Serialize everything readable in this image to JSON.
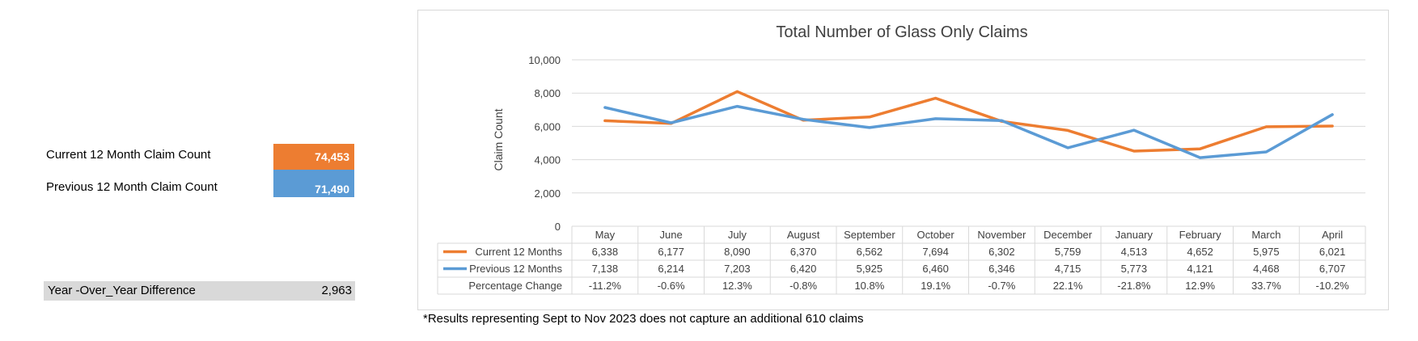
{
  "kpis": {
    "current_label": "Current 12 Month Claim Count",
    "current_value": "74,453",
    "previous_label": "Previous 12 Month Claim Count",
    "previous_value": "71,490",
    "yoy_label": "Year -Over_Year Difference",
    "yoy_value": "2,963",
    "colors": {
      "current": "#ed7d31",
      "previous": "#5b9bd5",
      "yoy_bg": "#d9d9d9"
    }
  },
  "footnote": "*Results representing Sept to Nov 2023 does not capture an additional 610 claims",
  "chart_data": {
    "type": "line",
    "title": "Total Number of Glass Only Claims",
    "ylabel": "Claim Count",
    "xlabel": "",
    "ylim": [
      0,
      10000
    ],
    "yticks": [
      "0",
      "2,000",
      "4,000",
      "6,000",
      "8,000",
      "10,000"
    ],
    "grid": true,
    "categories": [
      "May",
      "June",
      "July",
      "August",
      "September",
      "October",
      "November",
      "December",
      "January",
      "February",
      "March",
      "April"
    ],
    "series": [
      {
        "name": "Current 12 Months",
        "color": "#ed7d31",
        "values": [
          6338,
          6177,
          8090,
          6370,
          6562,
          7694,
          6302,
          5759,
          4513,
          4652,
          5975,
          6021
        ],
        "labels": [
          "6,338",
          "6,177",
          "8,090",
          "6,370",
          "6,562",
          "7,694",
          "6,302",
          "5,759",
          "4,513",
          "4,652",
          "5,975",
          "6,021"
        ]
      },
      {
        "name": "Previous 12 Months",
        "color": "#5b9bd5",
        "values": [
          7138,
          6214,
          7203,
          6420,
          5925,
          6460,
          6346,
          4715,
          5773,
          4121,
          4468,
          6707
        ],
        "labels": [
          "7,138",
          "6,214",
          "7,203",
          "6,420",
          "5,925",
          "6,460",
          "6,346",
          "4,715",
          "5,773",
          "4,121",
          "4,468",
          "6,707"
        ]
      }
    ],
    "table_row_label": "Percentage Change",
    "percentage_change": [
      "-11.2%",
      "-0.6%",
      "12.3%",
      "-0.8%",
      "10.8%",
      "19.1%",
      "-0.7%",
      "22.1%",
      "-21.8%",
      "12.9%",
      "33.7%",
      "-10.2%"
    ]
  }
}
